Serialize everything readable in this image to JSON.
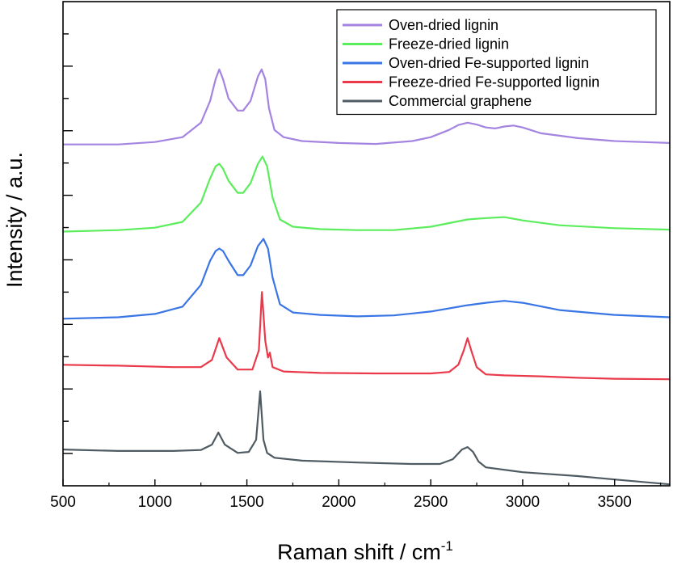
{
  "chart_data": {
    "type": "line",
    "xlabel_main": "Raman shift / cm",
    "xlabel_sup": "-1",
    "ylabel": "Intensity / a.u.",
    "xlim": [
      500,
      3800
    ],
    "ylim": [
      0,
      100
    ],
    "xticks": [
      500,
      1000,
      1500,
      2000,
      2500,
      3000,
      3500
    ],
    "x_tick_labels": [
      "500",
      "1000",
      "1500",
      "2000",
      "2500",
      "3000",
      "3500"
    ],
    "y_tick_labels_visible": false,
    "grid": false,
    "legend_position": "top-right",
    "series": [
      {
        "name": "Oven-dried lignin",
        "color": "#a484e0",
        "x": [
          500,
          800,
          1000,
          1150,
          1250,
          1300,
          1330,
          1350,
          1370,
          1400,
          1450,
          1480,
          1520,
          1560,
          1580,
          1600,
          1620,
          1650,
          1700,
          1800,
          2000,
          2200,
          2400,
          2500,
          2600,
          2650,
          2700,
          2750,
          2800,
          2850,
          2900,
          2950,
          3000,
          3100,
          3200,
          3300,
          3500,
          3800
        ],
        "y": [
          70.5,
          70.5,
          71.0,
          72.0,
          75.0,
          79.5,
          84.0,
          86.0,
          84.0,
          80.0,
          77.5,
          77.5,
          79.5,
          84.5,
          86.0,
          84.0,
          78.0,
          73.5,
          72.0,
          71.2,
          70.8,
          70.6,
          71.2,
          72.0,
          73.5,
          74.5,
          75.0,
          74.6,
          74.0,
          73.8,
          74.2,
          74.4,
          74.0,
          72.8,
          72.3,
          71.8,
          71.2,
          70.8
        ]
      },
      {
        "name": "Freeze-dried lignin",
        "color": "#5ced5c",
        "x": [
          500,
          800,
          1000,
          1150,
          1250,
          1300,
          1330,
          1350,
          1370,
          1400,
          1450,
          1480,
          1520,
          1560,
          1585,
          1610,
          1640,
          1680,
          1750,
          1900,
          2100,
          2300,
          2500,
          2700,
          2800,
          2900,
          3000,
          3200,
          3500,
          3800
        ],
        "y": [
          52.5,
          52.8,
          53.3,
          54.5,
          58.5,
          63.5,
          66.0,
          66.5,
          65.5,
          63.0,
          60.5,
          60.5,
          62.5,
          66.5,
          68.0,
          66.0,
          59.5,
          55.0,
          53.5,
          53.0,
          52.8,
          52.8,
          53.5,
          55.0,
          55.3,
          55.5,
          54.8,
          53.8,
          53.2,
          52.9
        ]
      },
      {
        "name": "Oven-dried Fe-supported lignin",
        "color": "#3a75e6",
        "x": [
          500,
          800,
          1000,
          1150,
          1250,
          1300,
          1330,
          1350,
          1370,
          1400,
          1450,
          1480,
          1520,
          1560,
          1590,
          1615,
          1640,
          1680,
          1750,
          1900,
          2100,
          2300,
          2500,
          2700,
          2800,
          2900,
          3000,
          3200,
          3500,
          3800
        ],
        "y": [
          34.5,
          34.8,
          35.5,
          37.0,
          41.5,
          46.5,
          48.5,
          49.0,
          48.5,
          46.5,
          43.5,
          43.5,
          45.5,
          49.5,
          51.0,
          49.0,
          43.0,
          37.5,
          35.8,
          35.3,
          35.0,
          35.2,
          36.0,
          37.3,
          37.8,
          38.2,
          37.8,
          36.3,
          35.3,
          34.8
        ]
      },
      {
        "name": "Freeze-dried Fe-supported lignin",
        "color": "#e9394a",
        "x": [
          500,
          800,
          1100,
          1250,
          1310,
          1350,
          1390,
          1450,
          1530,
          1565,
          1582,
          1600,
          1615,
          1625,
          1640,
          1700,
          1900,
          2200,
          2500,
          2600,
          2650,
          2680,
          2700,
          2720,
          2750,
          2800,
          2900,
          3100,
          3300,
          3500,
          3800
        ],
        "y": [
          25.0,
          24.8,
          24.5,
          24.5,
          26.0,
          30.5,
          26.5,
          24.0,
          24.0,
          28.0,
          40.0,
          30.0,
          26.5,
          27.5,
          24.5,
          23.6,
          23.3,
          23.2,
          23.2,
          23.5,
          25.0,
          28.0,
          30.5,
          28.0,
          24.5,
          23.0,
          22.8,
          22.6,
          22.3,
          22.1,
          22.0
        ]
      },
      {
        "name": "Commercial graphene",
        "color": "#4f5b62",
        "x": [
          500,
          800,
          1100,
          1250,
          1310,
          1345,
          1380,
          1450,
          1510,
          1550,
          1572,
          1590,
          1610,
          1650,
          1800,
          2100,
          2400,
          2550,
          2620,
          2670,
          2700,
          2730,
          2760,
          2800,
          3000,
          3300,
          3500,
          3800
        ],
        "y": [
          7.5,
          7.2,
          7.2,
          7.4,
          8.5,
          11.0,
          8.5,
          6.8,
          7.0,
          9.5,
          19.5,
          9.5,
          6.8,
          5.8,
          5.2,
          4.8,
          4.5,
          4.5,
          5.5,
          7.5,
          8.0,
          7.0,
          5.0,
          3.8,
          2.8,
          2.0,
          1.3,
          0.3
        ]
      }
    ]
  }
}
